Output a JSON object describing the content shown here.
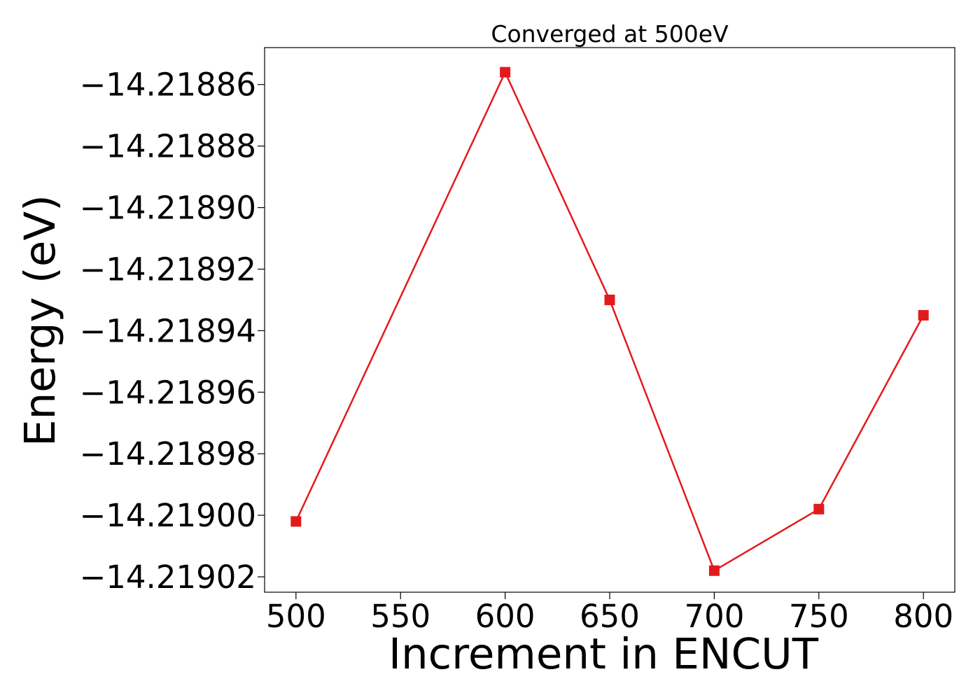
{
  "chart_data": {
    "type": "line",
    "title": "Converged at 500eV",
    "xlabel": "Increment in ENCUT",
    "ylabel": "Energy (eV)",
    "x": [
      500,
      600,
      650,
      700,
      750,
      800
    ],
    "series": [
      {
        "values": [
          -14.219002,
          -14.218856,
          -14.21893,
          -14.219018,
          -14.218998,
          -14.218935
        ],
        "color": "#e31a1c",
        "marker": "square"
      }
    ],
    "xticks": [
      500,
      550,
      600,
      650,
      700,
      750,
      800
    ],
    "xtick_labels": [
      "500",
      "550",
      "600",
      "650",
      "700",
      "750",
      "800"
    ],
    "yticks": [
      -14.21886,
      -14.21888,
      -14.2189,
      -14.21892,
      -14.21894,
      -14.21896,
      -14.21898,
      -14.219,
      -14.21902
    ],
    "ytick_labels": [
      "−14.21886",
      "−14.21888",
      "−14.21890",
      "−14.21892",
      "−14.21894",
      "−14.21896",
      "−14.21898",
      "−14.21900",
      "−14.21902"
    ],
    "xlim": [
      485,
      815
    ],
    "ylim": [
      -14.219025,
      -14.218848
    ],
    "grid": false,
    "legend": "none"
  }
}
